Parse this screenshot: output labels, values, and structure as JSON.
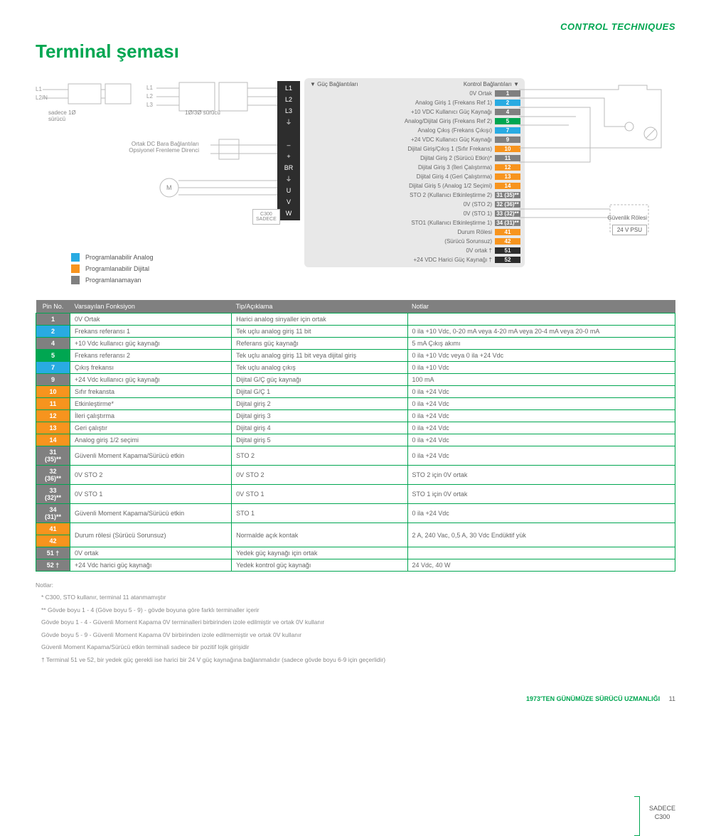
{
  "brand": "CONTROL TECHNIQUES",
  "title": "Terminal şeması",
  "colors": {
    "green": "#00a651",
    "blue": "#29abe2",
    "orange": "#f7941e",
    "darkgrey": "#808080",
    "lightgrey": "#9e9e9e",
    "black": "#2d2d2d",
    "row_bg": "#e8e8e8",
    "grey_num": "#808080"
  },
  "circuit": {
    "sadece": "sadece 1Ø\nsürücü",
    "surucu": "1Ø/3Ø sürücü",
    "dcbar": "Ortak DC Bara Bağlantıları\nOpsiyonel Frenleme Direnci",
    "L": [
      "L1",
      "L2/N"
    ],
    "L3": [
      "L1",
      "L2",
      "L3"
    ],
    "motor": "M",
    "c300": "C300\nSADECE",
    "pwr_head": "▼  Güç Bağlantıları",
    "ctrl_head": "Kontrol Bağlantıları  ▼",
    "pwr": [
      "L1",
      "L2",
      "L3",
      "⏚",
      "",
      "–",
      "+",
      "BR",
      "⏚",
      "U",
      "V",
      "W"
    ],
    "psu_title": "Güvenlik Rölesi",
    "psu": "24 V PSU"
  },
  "terminals": [
    {
      "n": "1",
      "c": "#808080",
      "t": "0V Ortak"
    },
    {
      "n": "2",
      "c": "#29abe2",
      "t": "Analog Giriş 1 (Frekans Ref 1)"
    },
    {
      "n": "4",
      "c": "#808080",
      "t": "+10 VDC Kullanıcı Güç Kaynağı"
    },
    {
      "n": "5",
      "c": "#00a651",
      "t": "Analog/Dijital Giriş (Frekans Ref 2)"
    },
    {
      "n": "7",
      "c": "#29abe2",
      "t": "Analog Çıkış (Frekans Çıkışı)"
    },
    {
      "n": "9",
      "c": "#808080",
      "t": "+24 VDC Kullanıcı Güç Kaynağı"
    },
    {
      "n": "10",
      "c": "#f7941e",
      "t": "Dijital Giriş/Çıkış 1 (Sıfır Frekans)"
    },
    {
      "n": "11",
      "c": "#808080",
      "t": "Dijital Giriş 2 (Sürücü Etkin)*"
    },
    {
      "n": "12",
      "c": "#f7941e",
      "t": "Dijital Giriş 3 (İleri Çalıştırma)"
    },
    {
      "n": "13",
      "c": "#f7941e",
      "t": "Dijital Giriş 4 (Geri Çalıştırma)"
    },
    {
      "n": "14",
      "c": "#f7941e",
      "t": "Dijital Giriş 5 (Analog 1/2 Seçimi)"
    },
    {
      "n": "31 (35)**",
      "c": "#808080",
      "t": "STO 2 (Kullanıcı Etkinleştirme 2)"
    },
    {
      "n": "32 (36)**",
      "c": "#808080",
      "t": "0V (STO 2)"
    },
    {
      "n": "33 (32)**",
      "c": "#808080",
      "t": "0V (STO 1)"
    },
    {
      "n": "34 (31)**",
      "c": "#808080",
      "t": "STO1 (Kullanıcı Etkinleştirme 1)"
    },
    {
      "n": "41",
      "c": "#f7941e",
      "t": "Durum Rölesi"
    },
    {
      "n": "42",
      "c": "#f7941e",
      "t": "(Sürücü Sorunsuz)"
    },
    {
      "n": "51",
      "c": "#2d2d2d",
      "t": "0V ortak       †"
    },
    {
      "n": "52",
      "c": "#2d2d2d",
      "t": "+24 VDC Harici Güç Kaynağı †"
    }
  ],
  "legend": [
    {
      "c": "#29abe2",
      "t": "Programlanabilir Analog"
    },
    {
      "c": "#f7941e",
      "t": "Programlanabilir Dijital"
    },
    {
      "c": "#808080",
      "t": "Programlanamayan"
    }
  ],
  "table": {
    "headers": [
      "Pin No.",
      "Varsayılan Fonksiyon",
      "Tip/Açıklama",
      "Notlar"
    ],
    "rows": [
      {
        "pin": "1",
        "c": "#808080",
        "f": "0V Ortak",
        "d": "Harici analog sinyaller için ortak",
        "n": ""
      },
      {
        "pin": "2",
        "c": "#29abe2",
        "f": "Frekans referansı 1",
        "d": "Tek uçlu analog giriş 11 bit",
        "n": "0 ila +10 Vdc, 0-20 mA veya 4-20 mA veya 20-4 mA veya 20-0 mA"
      },
      {
        "pin": "4",
        "c": "#808080",
        "f": "+10 Vdc kullanıcı güç kaynağı",
        "d": "Referans güç kaynağı",
        "n": "5 mA Çıkış akımı"
      },
      {
        "pin": "5",
        "c": "#00a651",
        "f": "Frekans referansı 2",
        "d": "Tek uçlu analog giriş 11 bit veya dijital giriş",
        "n": "0 ila +10 Vdc veya 0 ila +24 Vdc"
      },
      {
        "pin": "7",
        "c": "#29abe2",
        "f": "Çıkış frekansı",
        "d": "Tek uçlu analog çıkış",
        "n": "0 ila +10 Vdc"
      },
      {
        "pin": "9",
        "c": "#808080",
        "f": "+24 Vdc kullanıcı güç kaynağı",
        "d": "Dijital G/Ç güç kaynağı",
        "n": "100 mA"
      },
      {
        "pin": "10",
        "c": "#f7941e",
        "f": "Sıfır frekansta",
        "d": "Dijital G/Ç 1",
        "n": "0 ila +24 Vdc"
      },
      {
        "pin": "11",
        "c": "#f7941e",
        "f": "Etkinleştirme*",
        "d": "Dijital giriş 2",
        "n": "0 ila +24 Vdc"
      },
      {
        "pin": "12",
        "c": "#f7941e",
        "f": "İleri çalıştırma",
        "d": "Dijital giriş 3",
        "n": "0 ila +24 Vdc"
      },
      {
        "pin": "13",
        "c": "#f7941e",
        "f": "Geri çalıştır",
        "d": "Dijital giriş 4",
        "n": "0 ila +24 Vdc"
      },
      {
        "pin": "14",
        "c": "#f7941e",
        "f": "Analog giriş 1/2 seçimi",
        "d": "Dijital giriş 5",
        "n": "0 ila +24 Vdc"
      },
      {
        "pin": "31 (35)**",
        "c": "#808080",
        "f": "Güvenli Moment Kapama/Sürücü etkin",
        "d": "STO 2",
        "n": "0 ila +24 Vdc"
      },
      {
        "pin": "32 (36)**",
        "c": "#808080",
        "f": "0V STO 2",
        "d": "0V STO 2",
        "n": "STO 2 için 0V ortak"
      },
      {
        "pin": "33 (32)**",
        "c": "#808080",
        "f": "0V STO 1",
        "d": "0V STO 1",
        "n": "STO 1 için 0V ortak"
      },
      {
        "pin": "34 (31)**",
        "c": "#808080",
        "f": "Güvenli Moment Kapama/Sürücü etkin",
        "d": "STO 1",
        "n": "0 ila +24 Vdc"
      },
      {
        "pin": "41",
        "c": "#f7941e",
        "f": "Durum rölesi (Sürücü Sorunsuz)",
        "d": "Normalde açık kontak",
        "n": "2 A, 240 Vac, 0,5 A, 30 Vdc Endüktif yük",
        "span": 2
      },
      {
        "pin": "42",
        "c": "#f7941e"
      },
      {
        "pin": "51 †",
        "c": "#808080",
        "f": "0V ortak",
        "d": "Yedek güç kaynağı için ortak",
        "n": ""
      },
      {
        "pin": "52 †",
        "c": "#808080",
        "f": "+24 Vdc harici güç kaynağı",
        "d": "Yedek kontrol güç kaynağı",
        "n": "24 Vdc, 40 W"
      }
    ],
    "side": "SADECE\nC300"
  },
  "notes": {
    "title": "Notlar:",
    "lines": [
      "*   C300, STO kullanır, terminal 11 atanmamıştır",
      "** Gövde boyu 1 - 4 (Göve boyu 5 - 9) - gövde boyuna göre farklı terminaller içerir",
      "    Gövde boyu 1 - 4 - Güvenli Moment Kapama 0V terminalleri birbirinden izole edilmiştir ve ortak 0V kullanır",
      "    Gövde boyu 5 - 9 - Güvenli Moment Kapama 0V birbirinden izole edilmemiştir ve ortak 0V kullanır",
      "    Güvenli Moment Kapama/Sürücü etkin terminali sadece bir pozitif lojik girişidir",
      "†   Terminal 51 ve 52, bir yedek güç gerekli ise harici bir 24 V güç kaynağına bağlanmalıdır (sadece gövde boyu 6-9 için geçerlidir)"
    ]
  },
  "footer": {
    "tag": "1973'TEN GÜNÜMÜZE SÜRÜCÜ UZMANLIĞI",
    "page": "11"
  }
}
